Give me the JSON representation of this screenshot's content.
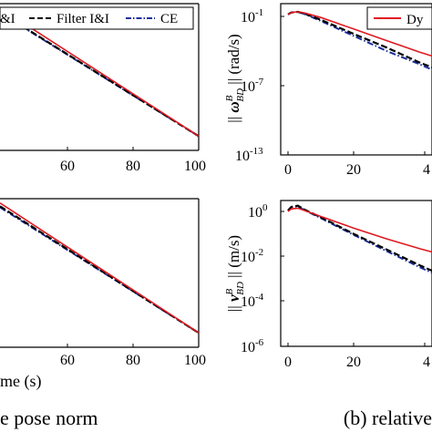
{
  "colors": {
    "dyn": "#e0191f",
    "filter": "#000000",
    "ce": "#1b2f9a"
  },
  "panels": {
    "top_left": {
      "xticks": [
        "60",
        "80",
        "100"
      ],
      "legend": {
        "visible_a": "&I",
        "visible_b": "Filter I&I",
        "visible_c": "CE"
      }
    },
    "top_right": {
      "ylabel": "|| ω_BD^B || (rad/s)",
      "ylabel_main": "|| ",
      "ylabel_sym": "ω",
      "ylabel_sup": "B",
      "ylabel_sub": "BD",
      "ylabel_end": " || (rad/s)",
      "yticks": [
        "10",
        "10",
        "10"
      ],
      "yexp": [
        "-1",
        "-7",
        "-13"
      ],
      "xticks": [
        "0",
        "20",
        "4"
      ],
      "legend": {
        "visible": "Dy"
      }
    },
    "bottom_left": {
      "xlabel": "me (s)",
      "xticks": [
        "60",
        "80",
        "100"
      ]
    },
    "bottom_right": {
      "ylabel_main": "|| ",
      "ylabel_sym": "v",
      "ylabel_sup": "B",
      "ylabel_sub": "BD",
      "ylabel_end": " || (m/s)",
      "yticks": [
        "10",
        "10",
        "10",
        "10"
      ],
      "yexp": [
        "0",
        "-2",
        "-4",
        "-6"
      ],
      "xticks": [
        "0",
        "20",
        "4"
      ]
    }
  },
  "captions": {
    "left": "e pose norm",
    "right": "(b) relative"
  },
  "chart_data": [
    {
      "type": "line",
      "panel": "top-left",
      "x": [
        40,
        100
      ],
      "xlim": [
        40,
        100
      ],
      "yscale": "log",
      "legend_position": "top",
      "series": [
        {
          "name": "&I",
          "color": "#e0191f",
          "x": [
            40,
            100
          ],
          "y": [
            1.0,
            1e-09
          ]
        },
        {
          "name": "Filter I&I",
          "color": "#000000",
          "x": [
            40,
            100
          ],
          "y": [
            0.5,
            1e-09
          ]
        },
        {
          "name": "CE",
          "color": "#1b2f9a",
          "x": [
            40,
            100
          ],
          "y": [
            0.45,
            1e-09
          ]
        }
      ]
    },
    {
      "type": "line",
      "panel": "top-right",
      "xlim": [
        0,
        50
      ],
      "ylim": [
        1e-13,
        1
      ],
      "yscale": "log",
      "ylabel": "|| ω_BD^B || (rad/s)",
      "legend_position": "top-right",
      "series": [
        {
          "name": "Dy",
          "color": "#e0191f",
          "x": [
            0,
            1,
            3,
            5,
            10,
            20,
            30,
            40,
            50
          ],
          "y": [
            0.15,
            0.22,
            0.25,
            0.2,
            0.08,
            0.008,
            0.0008,
            8e-05,
            1e-05
          ]
        },
        {
          "color": "#000000",
          "x": [
            0,
            1,
            3,
            5,
            10,
            20,
            30,
            40,
            50
          ],
          "y": [
            0.15,
            0.22,
            0.25,
            0.18,
            0.05,
            0.003,
            0.0002,
            1e-05,
            8e-07
          ]
        },
        {
          "color": "#1b2f9a",
          "x": [
            0,
            1,
            3,
            5,
            10,
            20,
            30,
            40,
            50
          ],
          "y": [
            0.15,
            0.22,
            0.25,
            0.16,
            0.04,
            0.002,
            0.0001,
            7e-06,
            4e-07
          ]
        }
      ]
    },
    {
      "type": "line",
      "panel": "bottom-left",
      "xlim": [
        40,
        100
      ],
      "yscale": "log",
      "xlabel": "me (s)",
      "series": [
        {
          "color": "#e0191f",
          "x": [
            40,
            100
          ],
          "y": [
            1.0,
            1e-09
          ]
        },
        {
          "color": "#000000",
          "x": [
            40,
            100
          ],
          "y": [
            0.6,
            1e-09
          ]
        },
        {
          "color": "#1b2f9a",
          "x": [
            40,
            100
          ],
          "y": [
            0.5,
            1e-09
          ]
        }
      ]
    },
    {
      "type": "line",
      "panel": "bottom-right",
      "xlim": [
        0,
        50
      ],
      "ylim": [
        1e-06,
        3
      ],
      "yscale": "log",
      "ylabel": "|| v_BD^B || (m/s)",
      "series": [
        {
          "color": "#e0191f",
          "x": [
            0,
            1,
            3,
            5,
            10,
            20,
            30,
            40,
            50
          ],
          "y": [
            1.0,
            1.3,
            1.4,
            1.1,
            0.6,
            0.18,
            0.06,
            0.022,
            0.009
          ]
        },
        {
          "color": "#000000",
          "x": [
            0,
            1,
            3,
            5,
            10,
            20,
            30,
            40,
            50
          ],
          "y": [
            1.1,
            1.6,
            1.8,
            1.2,
            0.55,
            0.1,
            0.02,
            0.004,
            0.0009
          ]
        },
        {
          "color": "#1b2f9a",
          "x": [
            0,
            1,
            3,
            5,
            10,
            20,
            30,
            40,
            50
          ],
          "y": [
            1.1,
            1.55,
            1.7,
            1.15,
            0.5,
            0.09,
            0.017,
            0.0033,
            0.0007
          ]
        }
      ]
    }
  ]
}
